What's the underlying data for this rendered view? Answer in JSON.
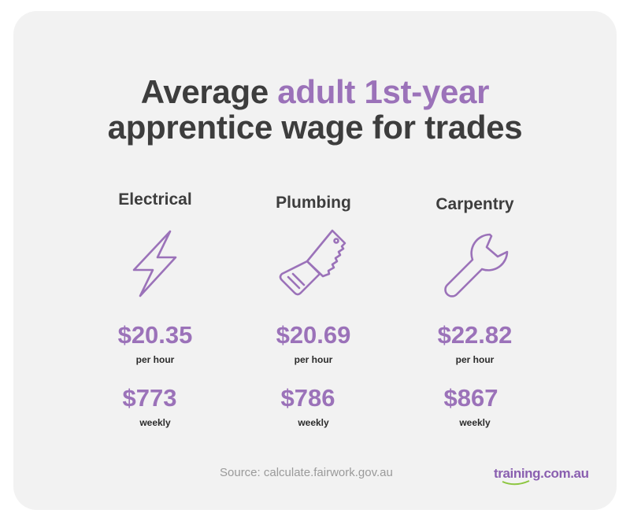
{
  "title": {
    "line1_prefix": "Average ",
    "line1_accent": "adult 1st-year",
    "line2": "apprentice wage for trades"
  },
  "trades": [
    {
      "name": "Electrical",
      "icon": "lightning-icon",
      "hourly": "$20.35",
      "hourly_unit": "per hour",
      "weekly": "$773",
      "weekly_unit": "weekly"
    },
    {
      "name": "Plumbing",
      "icon": "saw-icon",
      "hourly": "$20.69",
      "hourly_unit": "per hour",
      "weekly": "$786",
      "weekly_unit": "weekly"
    },
    {
      "name": "Carpentry",
      "icon": "wrench-icon",
      "hourly": "$22.82",
      "hourly_unit": "per hour",
      "weekly": "$867",
      "weekly_unit": "weekly"
    }
  ],
  "source": "Source: calculate.fairwork.gov.au",
  "brand": "training.com.au",
  "colors": {
    "accent": "#9b72b9",
    "text": "#3d3d3d",
    "card": "#f2f2f2",
    "brand_green": "#8cc63f"
  }
}
